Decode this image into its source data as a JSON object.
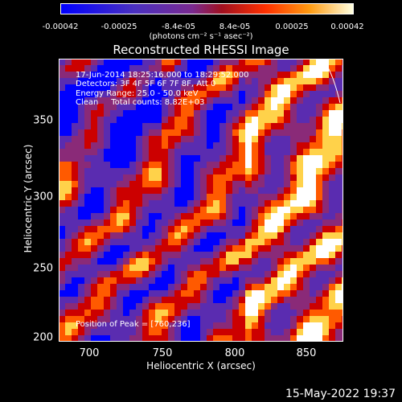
{
  "chart_data": {
    "type": "heatmap",
    "title": "Reconstructed RHESSI Image",
    "xlabel": "Heliocentric X (arcsec)",
    "ylabel": "Heliocentric Y (arcsec)",
    "xlim": [
      680,
      873
    ],
    "ylim": [
      200,
      375
    ],
    "x_ticks": [
      "700",
      "750",
      "800",
      "850"
    ],
    "y_ticks": [
      "200",
      "250",
      "300",
      "350"
    ],
    "x_tick_values": [
      700,
      750,
      800,
      850
    ],
    "y_tick_values": [
      200,
      250,
      300,
      350
    ],
    "colorbar": {
      "range": [
        -0.00042,
        0.00042
      ],
      "ticks": [
        "-0.00042",
        "-0.00025",
        "-8.4e-05",
        "8.4e-05",
        "0.00025",
        "0.00042"
      ],
      "tick_values": [
        -0.00042,
        -0.00025,
        -8.4e-05,
        8.4e-05,
        0.00025,
        0.00042
      ],
      "units": "(photons cm⁻² s⁻¹ asec⁻²)"
    },
    "annotations": [
      "17-Jun-2014 18:25:16.000 to 18:29:52.000",
      "Detectors: 3F 4F 5F 6F 7F 8F, Att 0",
      "Energy Range: 25.0 - 50.0 keV",
      "Clean     Total counts: 8.82E+03"
    ],
    "peak_label": "Position of Peak = [760,236]",
    "peak": [
      760,
      236
    ],
    "colors": [
      "#0000ff",
      "#5a2cb0",
      "#8a2a78",
      "#cc0000",
      "#ff5a00",
      "#ffd24a",
      "#ffffff"
    ]
  },
  "footer": {
    "timestamp": "15-May-2022 19:37"
  }
}
